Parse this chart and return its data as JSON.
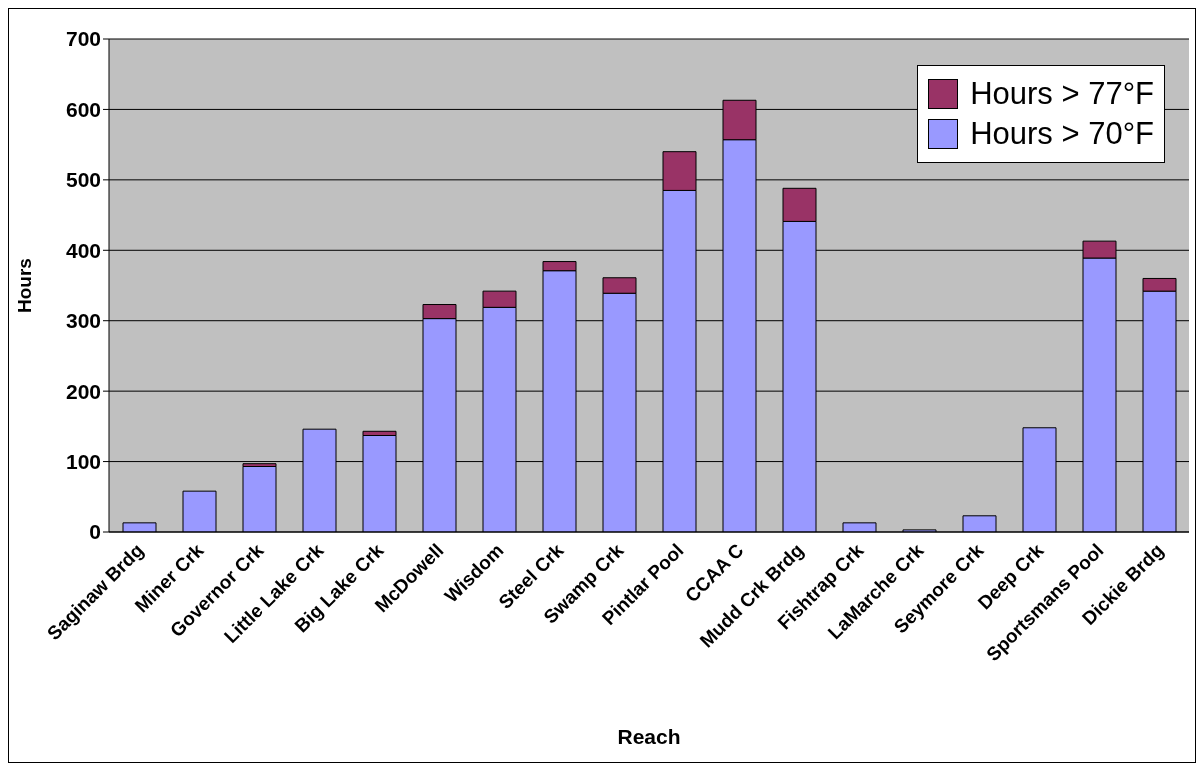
{
  "chart_data": {
    "type": "bar",
    "stacked": true,
    "xlabel": "Reach",
    "ylabel": "Hours",
    "categories": [
      "Saginaw Brdg",
      "Miner Crk",
      "Governor Crk",
      "Little Lake Crk",
      "Big Lake Crk",
      "McDowell",
      "Wisdom",
      "Steel Crk",
      "Swamp Crk",
      "Pintlar Pool",
      "CCAA C",
      "Mudd Crk Brdg",
      "Fishtrap Crk",
      "LaMarche Crk",
      "Seymore Crk",
      "Deep Crk",
      "Sportsmans Pool",
      "Dickie Brdg"
    ],
    "series": [
      {
        "name": "Hours > 70°F",
        "color": "#9999ff",
        "values": [
          13,
          58,
          93,
          146,
          137,
          303,
          319,
          371,
          339,
          485,
          557,
          441,
          13,
          3,
          23,
          148,
          389,
          342
        ]
      },
      {
        "name": "Hours > 77°F",
        "color": "#993366",
        "values": [
          0,
          0,
          4,
          0,
          6,
          20,
          23,
          13,
          22,
          55,
          56,
          47,
          0,
          0,
          0,
          0,
          24,
          18
        ]
      }
    ],
    "ylim": [
      0,
      700
    ],
    "yticks": [
      0,
      100,
      200,
      300,
      400,
      500,
      600,
      700
    ],
    "grid": "y",
    "legend": "top right"
  }
}
